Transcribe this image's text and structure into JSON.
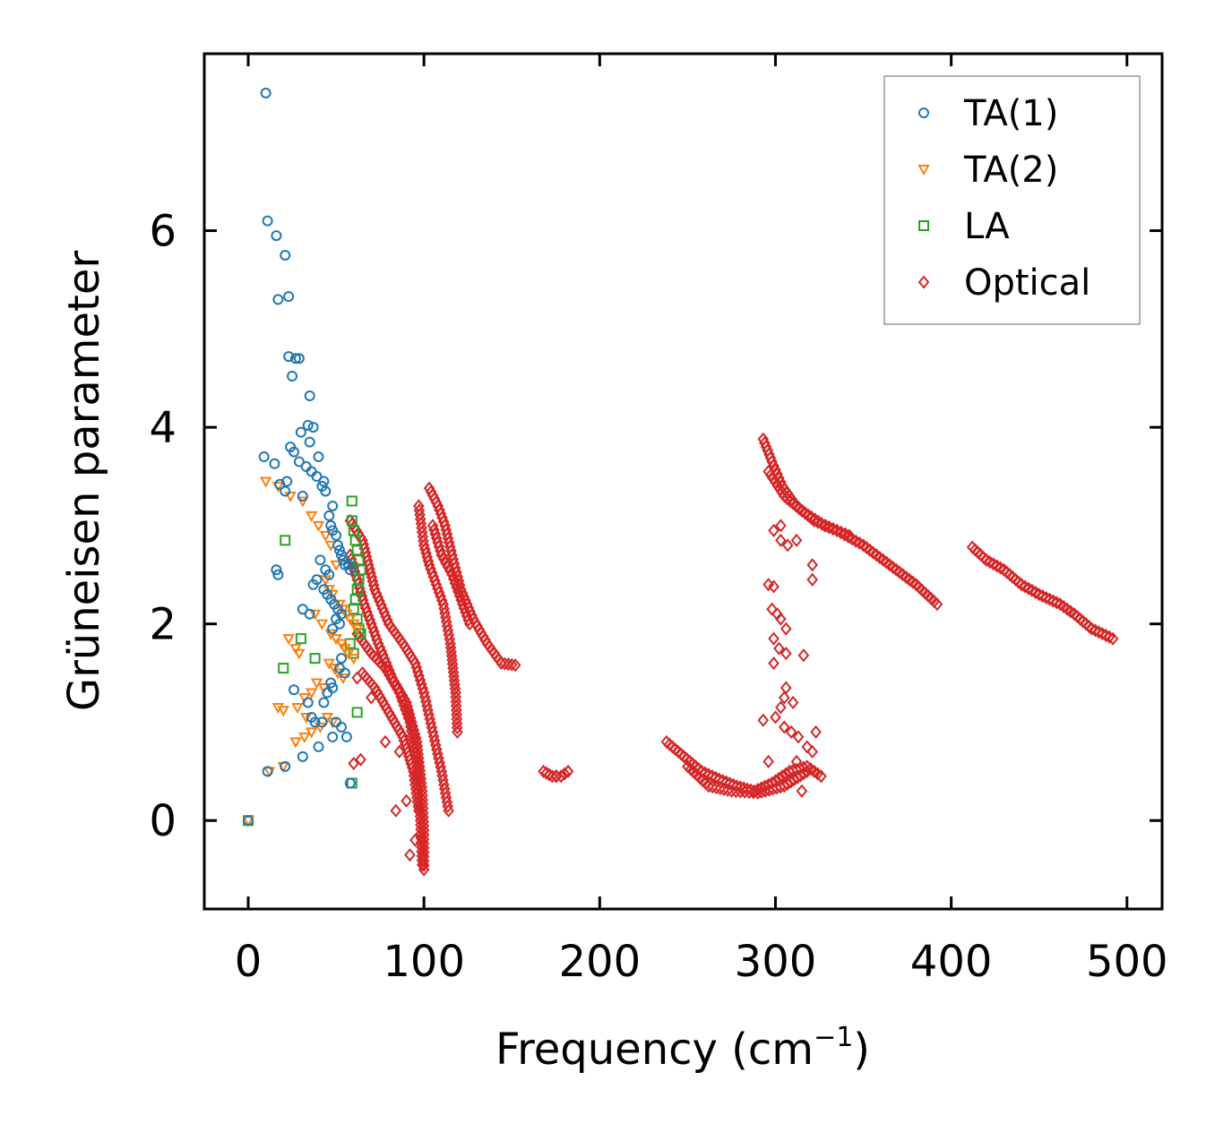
{
  "chart_data": {
    "type": "scatter",
    "title": "",
    "xlabel": "Frequency (cm",
    "xlabel_sup": "−1",
    "xlabel_close": ")",
    "ylabel": "Grüneisen parameter",
    "xlim": [
      -25,
      520
    ],
    "ylim": [
      -0.9,
      7.8
    ],
    "xticks": [
      0,
      100,
      200,
      300,
      400,
      500
    ],
    "xtick_labels": [
      "0",
      "100",
      "200",
      "300",
      "400",
      "500"
    ],
    "yticks": [
      0,
      2,
      4,
      6
    ],
    "ytick_labels": [
      "0",
      "2",
      "4",
      "6"
    ],
    "grid": false,
    "legend_position": "top-right",
    "series": [
      {
        "name": "TA(1)",
        "marker": "circle",
        "color": "#1f77b4",
        "points": [
          [
            0,
            0
          ],
          [
            10,
            7.4
          ],
          [
            11,
            6.1
          ],
          [
            16,
            5.95
          ],
          [
            21,
            5.75
          ],
          [
            17,
            5.3
          ],
          [
            23,
            5.33
          ],
          [
            23,
            4.72
          ],
          [
            27,
            4.7
          ],
          [
            29,
            4.7
          ],
          [
            25,
            4.52
          ],
          [
            35,
            4.32
          ],
          [
            30,
            3.95
          ],
          [
            34,
            4.02
          ],
          [
            37,
            4.0
          ],
          [
            35,
            3.85
          ],
          [
            24,
            3.8
          ],
          [
            26,
            3.75
          ],
          [
            40,
            3.7
          ],
          [
            29,
            3.65
          ],
          [
            33,
            3.6
          ],
          [
            36,
            3.55
          ],
          [
            39,
            3.5
          ],
          [
            43,
            3.45
          ],
          [
            42,
            3.4
          ],
          [
            44,
            3.35
          ],
          [
            31,
            3.3
          ],
          [
            48,
            3.2
          ],
          [
            46,
            3.1
          ],
          [
            47,
            3.0
          ],
          [
            48,
            2.95
          ],
          [
            50,
            2.9
          ],
          [
            51,
            2.8
          ],
          [
            52,
            2.75
          ],
          [
            53,
            2.7
          ],
          [
            54,
            2.65
          ],
          [
            55,
            2.6
          ],
          [
            57,
            2.6
          ],
          [
            58,
            2.55
          ],
          [
            41,
            2.65
          ],
          [
            44,
            2.55
          ],
          [
            46,
            2.5
          ],
          [
            39,
            2.45
          ],
          [
            37,
            2.4
          ],
          [
            43,
            2.35
          ],
          [
            45,
            2.3
          ],
          [
            47,
            2.25
          ],
          [
            49,
            2.2
          ],
          [
            51,
            2.15
          ],
          [
            53,
            2.1
          ],
          [
            50,
            2.05
          ],
          [
            52,
            2.0
          ],
          [
            48,
            1.95
          ],
          [
            35,
            2.1
          ],
          [
            31,
            2.15
          ],
          [
            16,
            2.55
          ],
          [
            17,
            2.5
          ],
          [
            9,
            3.7
          ],
          [
            15,
            3.63
          ],
          [
            22,
            3.45
          ],
          [
            18,
            3.42
          ],
          [
            21,
            3.35
          ],
          [
            53,
            1.65
          ],
          [
            52,
            1.55
          ],
          [
            55,
            1.5
          ],
          [
            47,
            1.4
          ],
          [
            48,
            1.35
          ],
          [
            45,
            1.3
          ],
          [
            26,
            1.33
          ],
          [
            34,
            1.2
          ],
          [
            43,
            1.2
          ],
          [
            36,
            1.05
          ],
          [
            38,
            1.0
          ],
          [
            42,
            1.0
          ],
          [
            50,
            1.0
          ],
          [
            53,
            0.95
          ],
          [
            56,
            0.85
          ],
          [
            48,
            0.85
          ],
          [
            40,
            0.75
          ],
          [
            31,
            0.65
          ],
          [
            21,
            0.55
          ],
          [
            11,
            0.5
          ],
          [
            58,
            0.38
          ]
        ]
      },
      {
        "name": "TA(2)",
        "marker": "triangle-down",
        "color": "#ff7f0e",
        "points": [
          [
            0,
            0
          ],
          [
            10,
            3.45
          ],
          [
            17,
            3.4
          ],
          [
            24,
            3.3
          ],
          [
            31,
            3.25
          ],
          [
            36,
            3.1
          ],
          [
            40,
            3.0
          ],
          [
            44,
            2.9
          ],
          [
            47,
            2.8
          ],
          [
            50,
            2.6
          ],
          [
            44,
            2.45
          ],
          [
            46,
            2.35
          ],
          [
            48,
            2.3
          ],
          [
            52,
            2.2
          ],
          [
            54,
            2.15
          ],
          [
            56,
            2.1
          ],
          [
            58,
            2.05
          ],
          [
            60,
            2.0
          ],
          [
            62,
            1.95
          ],
          [
            38,
            2.1
          ],
          [
            42,
            2.0
          ],
          [
            23,
            1.85
          ],
          [
            27,
            1.75
          ],
          [
            29,
            1.7
          ],
          [
            47,
            1.9
          ],
          [
            50,
            1.85
          ],
          [
            53,
            1.8
          ],
          [
            55,
            1.75
          ],
          [
            57,
            1.7
          ],
          [
            60,
            1.65
          ],
          [
            46,
            1.6
          ],
          [
            49,
            1.55
          ],
          [
            51,
            1.5
          ],
          [
            54,
            1.45
          ],
          [
            39,
            1.4
          ],
          [
            43,
            1.35
          ],
          [
            36,
            1.3
          ],
          [
            32,
            1.25
          ],
          [
            17,
            1.15
          ],
          [
            20,
            1.12
          ],
          [
            28,
            1.15
          ],
          [
            33,
            1.05
          ],
          [
            45,
            1.05
          ],
          [
            48,
            1.0
          ],
          [
            41,
            0.95
          ],
          [
            36,
            0.9
          ],
          [
            32,
            0.85
          ],
          [
            27,
            0.8
          ],
          [
            20,
            0.55
          ],
          [
            12,
            0.5
          ]
        ]
      },
      {
        "name": "LA",
        "marker": "square",
        "color": "#2ca02c",
        "points": [
          [
            0,
            0
          ],
          [
            59,
            3.25
          ],
          [
            59,
            3.05
          ],
          [
            60,
            2.95
          ],
          [
            61,
            2.85
          ],
          [
            62,
            2.75
          ],
          [
            63,
            2.65
          ],
          [
            64,
            2.55
          ],
          [
            63,
            2.45
          ],
          [
            62,
            2.35
          ],
          [
            61,
            2.25
          ],
          [
            60,
            2.15
          ],
          [
            62,
            2.05
          ],
          [
            63,
            1.95
          ],
          [
            64,
            1.9
          ],
          [
            21,
            2.85
          ],
          [
            20,
            1.55
          ],
          [
            30,
            1.85
          ],
          [
            38,
            1.65
          ],
          [
            58,
            1.8
          ],
          [
            60,
            1.7
          ],
          [
            62,
            1.1
          ],
          [
            59,
            0.38
          ]
        ]
      },
      {
        "name": "Optical",
        "marker": "diamond",
        "color": "#d62728",
        "segments": [
          [
            [
              58,
              3.05
            ],
            [
              65,
              2.85
            ],
            [
              72,
              2.35
            ],
            [
              80,
              2.0
            ],
            [
              88,
              1.8
            ],
            [
              95,
              1.6
            ],
            [
              100,
              1.3
            ],
            [
              105,
              0.9
            ],
            [
              110,
              0.5
            ],
            [
              114,
              0.1
            ]
          ],
          [
            [
              58,
              2.7
            ],
            [
              66,
              2.2
            ],
            [
              74,
              1.8
            ],
            [
              82,
              1.45
            ],
            [
              90,
              1.2
            ],
            [
              96,
              0.8
            ],
            [
              99,
              0.3
            ],
            [
              100,
              -0.1
            ],
            [
              100,
              -0.5
            ]
          ],
          [
            [
              62,
              1.9
            ],
            [
              70,
              1.7
            ],
            [
              78,
              1.55
            ],
            [
              86,
              1.3
            ],
            [
              92,
              1.0
            ],
            [
              96,
              0.6
            ],
            [
              98,
              0.0
            ],
            [
              99,
              -0.45
            ]
          ],
          [
            [
              65,
              1.5
            ],
            [
              72,
              1.35
            ],
            [
              80,
              1.1
            ],
            [
              88,
              0.85
            ],
            [
              94,
              0.5
            ],
            [
              97,
              0.1
            ]
          ],
          [
            [
              103,
              3.38
            ],
            [
              108,
              3.2
            ],
            [
              112,
              3.0
            ],
            [
              116,
              2.7
            ],
            [
              121,
              2.35
            ],
            [
              128,
              2.05
            ],
            [
              136,
              1.8
            ],
            [
              144,
              1.6
            ],
            [
              152,
              1.58
            ]
          ],
          [
            [
              97,
              3.2
            ],
            [
              100,
              2.8
            ],
            [
              103,
              2.6
            ],
            [
              107,
              2.4
            ],
            [
              111,
              2.2
            ],
            [
              115,
              1.8
            ],
            [
              118,
              1.3
            ],
            [
              119,
              0.9
            ]
          ],
          [
            [
              105,
              3.0
            ],
            [
              110,
              2.7
            ],
            [
              116,
              2.5
            ],
            [
              122,
              2.2
            ],
            [
              126,
              2.0
            ]
          ],
          [
            [
              168,
              0.5
            ],
            [
              173,
              0.45
            ],
            [
              178,
              0.45
            ],
            [
              182,
              0.5
            ]
          ],
          [
            [
              238,
              0.8
            ],
            [
              248,
              0.65
            ],
            [
              258,
              0.5
            ],
            [
              268,
              0.42
            ],
            [
              278,
              0.35
            ],
            [
              288,
              0.3
            ],
            [
              298,
              0.38
            ],
            [
              308,
              0.5
            ],
            [
              318,
              0.55
            ],
            [
              326,
              0.45
            ]
          ],
          [
            [
              250,
              0.55
            ],
            [
              262,
              0.35
            ],
            [
              275,
              0.3
            ],
            [
              290,
              0.28
            ],
            [
              305,
              0.35
            ],
            [
              318,
              0.5
            ]
          ],
          [
            [
              293,
              3.88
            ],
            [
              298,
              3.65
            ],
            [
              304,
              3.4
            ],
            [
              312,
              3.2
            ],
            [
              322,
              3.05
            ],
            [
              335,
              2.95
            ],
            [
              350,
              2.8
            ],
            [
              365,
              2.6
            ],
            [
              380,
              2.4
            ],
            [
              392,
              2.2
            ]
          ],
          [
            [
              296,
              3.55
            ],
            [
              305,
              3.3
            ],
            [
              315,
              3.15
            ],
            [
              328,
              3.0
            ],
            [
              342,
              2.9
            ]
          ],
          [
            [
              412,
              2.78
            ],
            [
              420,
              2.65
            ],
            [
              430,
              2.55
            ],
            [
              440,
              2.4
            ],
            [
              450,
              2.3
            ],
            [
              462,
              2.2
            ],
            [
              470,
              2.1
            ],
            [
              480,
              1.95
            ],
            [
              492,
              1.85
            ]
          ]
        ],
        "points": [
          [
            60,
            0.58
          ],
          [
            64,
            0.62
          ],
          [
            62,
            1.45
          ],
          [
            70,
            1.25
          ],
          [
            78,
            0.8
          ],
          [
            84,
            0.1
          ],
          [
            86,
            0.7
          ],
          [
            90,
            0.2
          ],
          [
            95,
            -0.2
          ],
          [
            92,
            -0.35
          ],
          [
            175,
            0.45
          ],
          [
            296,
            2.4
          ],
          [
            299,
            2.38
          ],
          [
            298,
            2.15
          ],
          [
            301,
            2.1
          ],
          [
            303,
            2.05
          ],
          [
            306,
            1.95
          ],
          [
            299,
            1.85
          ],
          [
            302,
            1.75
          ],
          [
            306,
            1.7
          ],
          [
            299,
            1.6
          ],
          [
            316,
            1.68
          ],
          [
            306,
            1.35
          ],
          [
            305,
            1.25
          ],
          [
            303,
            1.15
          ],
          [
            310,
            1.2
          ],
          [
            300,
            1.05
          ],
          [
            293,
            1.02
          ],
          [
            305,
            0.95
          ],
          [
            309,
            0.9
          ],
          [
            313,
            0.85
          ],
          [
            318,
            0.75
          ],
          [
            321,
            0.7
          ],
          [
            323,
            0.9
          ],
          [
            303,
            2.85
          ],
          [
            307,
            2.8
          ],
          [
            312,
            2.85
          ],
          [
            299,
            2.95
          ],
          [
            303,
            3.0
          ],
          [
            321,
            2.6
          ],
          [
            321,
            2.45
          ],
          [
            296,
            0.6
          ],
          [
            312,
            0.6
          ],
          [
            315,
            0.3
          ]
        ]
      }
    ]
  }
}
